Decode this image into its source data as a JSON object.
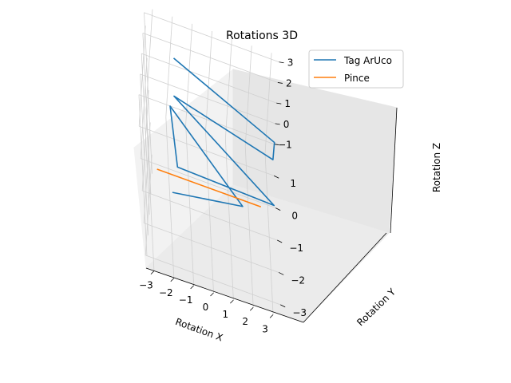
{
  "chart_data": {
    "type": "line",
    "projection": "3d",
    "title": "Rotations 3D",
    "xlabel": "Rotation X",
    "ylabel": "Rotation Y",
    "zlabel": "Rotation Z",
    "xticks": [
      "−3",
      "−2",
      "−1",
      "0",
      "1",
      "2",
      "3"
    ],
    "yticks": [
      "−3",
      "−2",
      "−1",
      "0",
      "1"
    ],
    "zticks": [
      "−1",
      "0",
      "1",
      "2",
      "3"
    ],
    "grid": true,
    "legend_position": "top-right",
    "series": [
      {
        "name": "Tag ArUco",
        "color": "#1f77b4",
        "points": [
          {
            "x": -2.0,
            "y": 0.5,
            "z": 3.0
          },
          {
            "x": 3.1,
            "y": -0.2,
            "z": 1.8
          },
          {
            "x": 3.1,
            "y": -0.1,
            "z": 0.8
          },
          {
            "x": -1.9,
            "y": 0.3,
            "z": 1.5
          },
          {
            "x": 3.1,
            "y": -1.2,
            "z": 0.3
          },
          {
            "x": -1.9,
            "y": -1.9,
            "z": 1.5
          },
          {
            "x": -1.9,
            "y": 1.2,
            "z": -0.4
          },
          {
            "x": 1.7,
            "y": -0.4,
            "z": -1.5
          },
          {
            "x": -2.0,
            "y": -1.5,
            "z": -0.4
          }
        ]
      },
      {
        "name": "Pince",
        "color": "#ff7f0e",
        "points": [
          {
            "x": -3.1,
            "y": -3.0,
            "z": 2.7
          },
          {
            "x": 2.6,
            "y": -0.4,
            "z": -1.2
          }
        ]
      }
    ]
  }
}
